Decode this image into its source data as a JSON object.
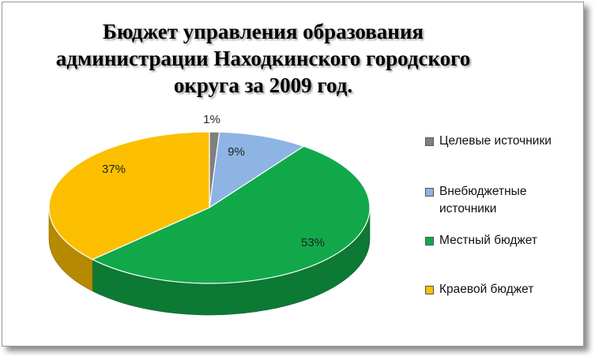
{
  "chart_data": {
    "type": "pie",
    "title": "Бюджет управления образования\nадминистрации Находкинского городского\nокруга за 2009 год.",
    "legend_position": "right",
    "three_d": true,
    "slices": [
      {
        "name": "Целевые источники",
        "value": 1,
        "label": "1%",
        "color": "#7f7f7f"
      },
      {
        "name": "Внебюджетные источники",
        "value": 9,
        "label": "9%",
        "color": "#8db4e3"
      },
      {
        "name": "Местный бюджет",
        "value": 53,
        "label": "53%",
        "color": "#11a84a"
      },
      {
        "name": "Краевой бюджет",
        "value": 37,
        "label": "37%",
        "color": "#fcbf00"
      }
    ]
  }
}
